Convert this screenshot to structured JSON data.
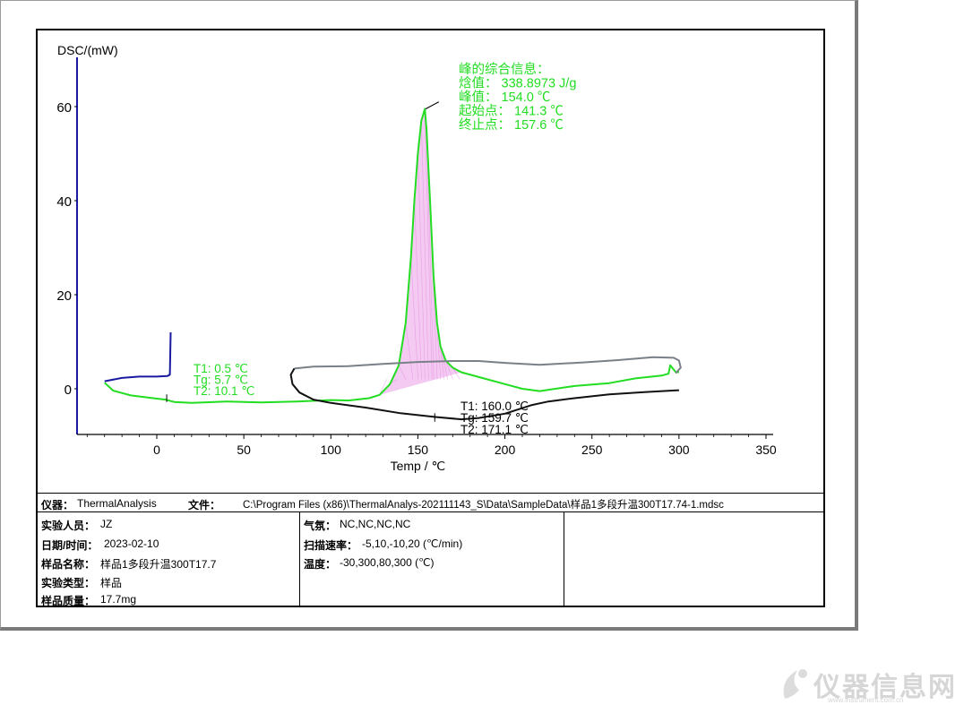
{
  "chart_data": {
    "type": "line",
    "xlabel": "Temp / ℃",
    "ylabel": "DSC/(mW)",
    "xlim": [
      -45,
      355
    ],
    "ylim": [
      -10,
      70
    ],
    "x_ticks": [
      0,
      50,
      100,
      150,
      200,
      250,
      300,
      350
    ],
    "y_ticks": [
      0,
      20,
      40,
      60
    ],
    "grid": false,
    "series": [
      {
        "color": "#1a1aa0",
        "points": [
          [
            -30,
            1.6
          ],
          [
            -20,
            2.3
          ],
          [
            -10,
            2.6
          ],
          [
            0,
            2.6
          ],
          [
            6,
            2.7
          ],
          [
            7.5,
            3.0
          ],
          [
            8,
            12.0
          ]
        ]
      },
      {
        "color": "#22dd22",
        "points": [
          [
            -30,
            1.3
          ],
          [
            -25,
            -0.4
          ],
          [
            -15,
            -1.4
          ],
          [
            0,
            -2.1
          ],
          [
            5,
            -2.3
          ],
          [
            10,
            -2.8
          ],
          [
            20,
            -3.0
          ],
          [
            40,
            -2.7
          ],
          [
            60,
            -2.9
          ],
          [
            80,
            -2.7
          ],
          [
            100,
            -2.4
          ],
          [
            110,
            -2.5
          ],
          [
            122,
            -2.0
          ],
          [
            128,
            -1.3
          ],
          [
            134,
            1.0
          ],
          [
            139,
            5.0
          ],
          [
            143,
            14.0
          ],
          [
            146,
            28.0
          ],
          [
            148,
            40.0
          ],
          [
            150,
            50.0
          ],
          [
            152,
            57.0
          ],
          [
            154,
            59.5
          ],
          [
            155,
            55.0
          ],
          [
            157,
            40.0
          ],
          [
            159,
            24.0
          ],
          [
            161,
            14.0
          ],
          [
            163,
            9.0
          ],
          [
            166,
            6.0
          ],
          [
            170,
            4.5
          ],
          [
            175,
            3.5
          ],
          [
            185,
            2.5
          ],
          [
            200,
            1.0
          ],
          [
            210,
            0.0
          ],
          [
            220,
            -0.5
          ],
          [
            240,
            0.6
          ],
          [
            260,
            1.2
          ],
          [
            275,
            2.2
          ],
          [
            290,
            2.8
          ],
          [
            294,
            3.2
          ],
          [
            295,
            5.0
          ],
          [
            298,
            3.6
          ],
          [
            300,
            3.5
          ]
        ]
      },
      {
        "color": "#7a8088",
        "points": [
          [
            79,
            4.3
          ],
          [
            90,
            4.7
          ],
          [
            110,
            4.8
          ],
          [
            130,
            5.3
          ],
          [
            150,
            5.7
          ],
          [
            170,
            5.9
          ],
          [
            185,
            5.9
          ],
          [
            200,
            5.5
          ],
          [
            220,
            5.1
          ],
          [
            245,
            5.6
          ],
          [
            265,
            6.1
          ],
          [
            285,
            6.7
          ],
          [
            297,
            6.6
          ],
          [
            300,
            6.0
          ],
          [
            301,
            4.5
          ],
          [
            298,
            3.3
          ]
        ]
      },
      {
        "color": "#111111",
        "points": [
          [
            79,
            4.3
          ],
          [
            77,
            3.0
          ],
          [
            78,
            1.0
          ],
          [
            82,
            -0.8
          ],
          [
            90,
            -2.3
          ],
          [
            100,
            -3.0
          ],
          [
            120,
            -4.0
          ],
          [
            140,
            -5.2
          ],
          [
            160,
            -6.0
          ],
          [
            175,
            -6.5
          ],
          [
            185,
            -6.2
          ],
          [
            200,
            -5.3
          ],
          [
            215,
            -3.5
          ],
          [
            225,
            -2.7
          ],
          [
            240,
            -2.0
          ],
          [
            260,
            -1.2
          ],
          [
            280,
            -0.7
          ],
          [
            295,
            -0.4
          ],
          [
            300,
            -0.3
          ]
        ]
      }
    ],
    "peak_fill": {
      "color": "#f0b8ee",
      "x_range": [
        128,
        175
      ]
    },
    "annotations": {
      "peak_box": [
        "峰的综合信息：",
        "焓值：  338.8973 J/g",
        "峰值：  154.0 ℃",
        "起始点：  141.3 ℃",
        "终止点：  157.6 ℃"
      ],
      "glass_green": [
        "T1:  0.5 ℃",
        "Tg:  5.7 ℃",
        "T2:  10.1 ℃"
      ],
      "glass_black": [
        "T1:  160.0 ℃",
        "Tg:  159.7 ℃",
        "T2:  171.1 ℃"
      ]
    }
  },
  "info": {
    "instrument_label": "仪器：",
    "instrument_value": "ThermalAnalysis",
    "file_label": "文件：",
    "file_value": "C:\\Program Files (x86)\\ThermalAnalys-202111143_S\\Data\\SampleData\\样品1多段升温300T17.74-1.mdsc",
    "operator_label": "实验人员：",
    "operator_value": "JZ",
    "datetime_label": "日期/时间：",
    "datetime_value": "2023-02-10",
    "sample_name_label": "样品名称：",
    "sample_name_value": "样品1多段升温300T17.7",
    "exp_type_label": "实验类型：",
    "exp_type_value": "样品",
    "mass_label": "样品质量：",
    "mass_value": "17.7mg",
    "gas_label": "气氛：",
    "gas_value": "NC,NC,NC,NC",
    "rate_label": "扫描速率：",
    "rate_value": "-5,10,-10,20 (℃/min)",
    "temp_label": "温度：",
    "temp_value": "-30,300,80,300 (℃)"
  },
  "watermark": {
    "text": "仪器信息网",
    "sub": "www.instrument.com.cn"
  }
}
